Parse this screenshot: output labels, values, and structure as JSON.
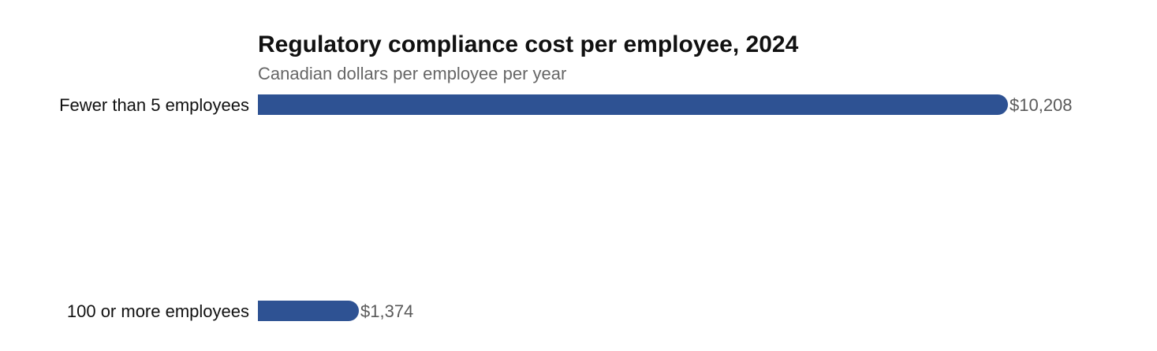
{
  "chart_data": {
    "type": "bar",
    "orientation": "horizontal",
    "title": "Regulatory compliance cost per employee, 2024",
    "subtitle": "Canadian dollars per employee per year",
    "xlabel": "",
    "ylabel": "",
    "categories": [
      "Fewer than 5 employees",
      "100 or more employees"
    ],
    "values": [
      10208,
      1374
    ],
    "value_labels": [
      "$10,208",
      "$1,374"
    ],
    "xlim": [
      0,
      10208
    ],
    "grid": false,
    "legend": "none",
    "bar_color": "#2e5293"
  }
}
